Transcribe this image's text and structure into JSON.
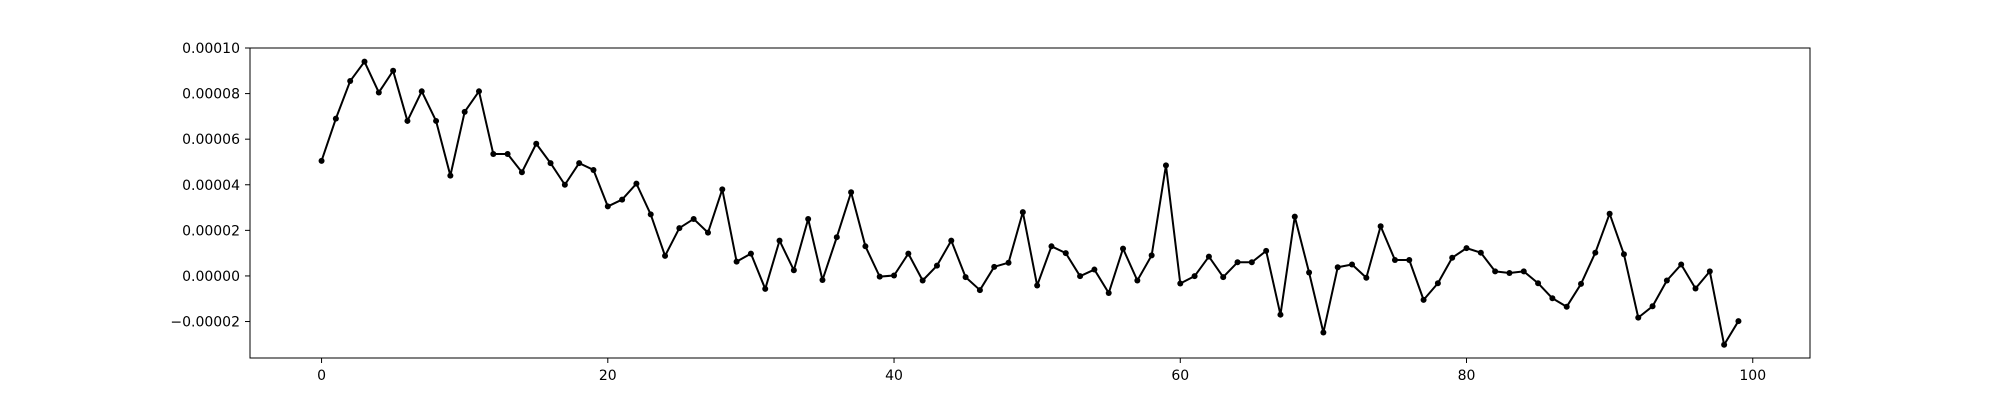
{
  "chart_data": {
    "type": "line",
    "title": "",
    "xlabel": "",
    "ylabel": "",
    "xlim": [
      -5,
      104
    ],
    "ylim": [
      -3.6e-05,
      0.0001
    ],
    "grid": false,
    "legend": "none",
    "x_ticks": [
      0,
      20,
      40,
      60,
      80,
      100
    ],
    "x_tick_labels": [
      "0",
      "20",
      "40",
      "60",
      "80",
      "100"
    ],
    "y_ticks": [
      -2e-05,
      0.0,
      2e-05,
      4e-05,
      6e-05,
      8e-05,
      0.0001
    ],
    "y_tick_labels": [
      "−0.00002",
      "0.00000",
      "0.00002",
      "0.00004",
      "0.00006",
      "0.00008",
      "0.00010"
    ],
    "line_color": "#000000",
    "marker": "circle",
    "series": [
      {
        "x": [
          0,
          1,
          2,
          3,
          4,
          5,
          6,
          7,
          8,
          9,
          10,
          11,
          12,
          13,
          14,
          15,
          16,
          17,
          18,
          19,
          20,
          21,
          22,
          23,
          24,
          25,
          26,
          27,
          28,
          29,
          30,
          31,
          32,
          33,
          34,
          35,
          36,
          37,
          38,
          39,
          40,
          41,
          42,
          43,
          44,
          45,
          46,
          47,
          48,
          49,
          50,
          51,
          52,
          53,
          54,
          55,
          56,
          57,
          58,
          59,
          60,
          61,
          62,
          63,
          64,
          65,
          66,
          67,
          68,
          69,
          70,
          71,
          72,
          73,
          74,
          75,
          76,
          77,
          78,
          79,
          80,
          81,
          82,
          83,
          84,
          85,
          86,
          87,
          88,
          89,
          90,
          91,
          92,
          93,
          94,
          95,
          96,
          97,
          98,
          99
        ],
        "values": [
          5.05e-05,
          6.9e-05,
          8.55e-05,
          9.4e-05,
          8.05e-05,
          9e-05,
          6.8e-05,
          8.1e-05,
          6.8e-05,
          4.4e-05,
          7.2e-05,
          8.1e-05,
          5.35e-05,
          5.35e-05,
          4.55e-05,
          5.8e-05,
          4.95e-05,
          4e-05,
          4.95e-05,
          4.65e-05,
          3.05e-05,
          3.35e-05,
          4.05e-05,
          2.7e-05,
          8.8e-06,
          2.1e-05,
          2.5e-05,
          1.9e-05,
          3.8e-05,
          6.3e-06,
          9.8e-06,
          -5.7e-06,
          1.55e-05,
          2.5e-06,
          2.5e-05,
          -1.8e-06,
          1.7e-05,
          3.67e-05,
          1.3e-05,
          -3e-07,
          2e-07,
          9.8e-06,
          -2e-06,
          4.5e-06,
          1.55e-05,
          -5e-07,
          -6.2e-06,
          4e-06,
          5.8e-06,
          2.8e-05,
          -4.2e-06,
          1.3e-05,
          1e-05,
          -1e-07,
          2.8e-06,
          -7.5e-06,
          1.2e-05,
          -2e-06,
          9e-06,
          4.85e-05,
          -3.3e-06,
          -1e-07,
          8.5e-06,
          -5e-07,
          6e-06,
          6e-06,
          1.1e-05,
          -1.7e-05,
          2.6e-05,
          1.5e-06,
          -2.48e-05,
          3.8e-06,
          5e-06,
          -8e-07,
          2.18e-05,
          7e-06,
          7e-06,
          -1.05e-05,
          -3.2e-06,
          8e-06,
          1.22e-05,
          1.02e-05,
          2e-06,
          1.3e-06,
          2e-06,
          -3.2e-06,
          -9.8e-06,
          -1.35e-05,
          -3.5e-06,
          1.02e-05,
          2.73e-05,
          9.5e-06,
          -1.83e-05,
          -1.33e-05,
          -2e-06,
          5e-06,
          -5.5e-06,
          2e-06,
          -3.02e-05,
          -1.98e-05
        ]
      }
    ]
  }
}
